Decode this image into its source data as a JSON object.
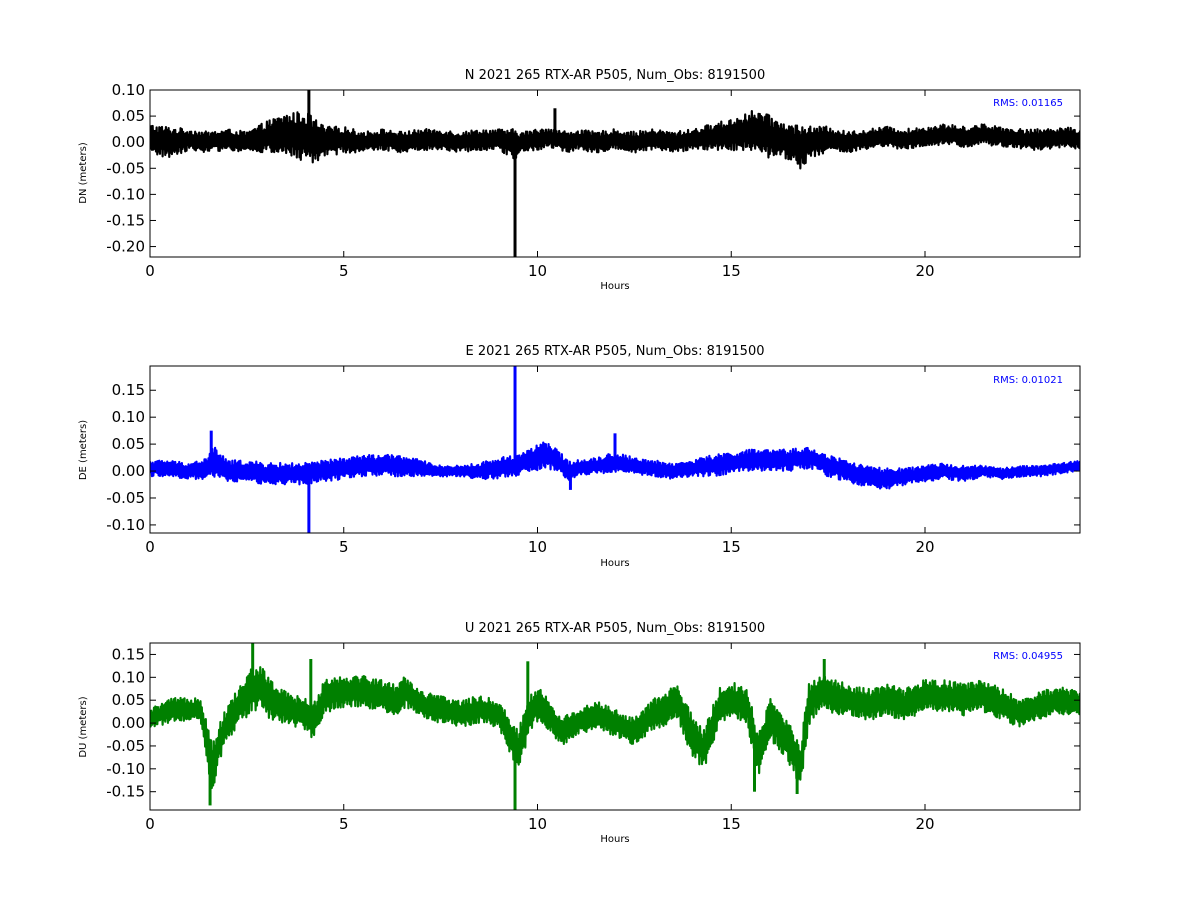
{
  "colors": {
    "background": "#ffffff",
    "axes": "#000000",
    "rms_text": "#0000ff"
  },
  "chart_data": [
    {
      "type": "line",
      "title": "N 2021 265 RTX-AR  P505, Num_Obs: 8191500",
      "xlabel": "Hours",
      "ylabel": "DN (meters)",
      "rms_text": "RMS:  0.01165",
      "xlim": [
        0,
        24
      ],
      "ylim": [
        -0.22,
        0.1
      ],
      "xticks": [
        0,
        5,
        10,
        15,
        20
      ],
      "xtick_labels": [
        "0",
        "5",
        "10",
        "15",
        "20"
      ],
      "yticks": [
        0.1,
        0.05,
        0.0,
        -0.05,
        -0.1,
        -0.15,
        -0.2
      ],
      "ytick_labels": [
        "0.10",
        "0.05",
        "0.00",
        "-0.05",
        "-0.10",
        "-0.15",
        "-0.20"
      ],
      "series": [
        {
          "color": "#000000",
          "x": [
            0,
            0.5,
            1,
            1.5,
            2,
            2.5,
            3,
            3.5,
            4,
            4.1,
            4.5,
            5,
            5.5,
            6,
            6.5,
            7,
            7.5,
            8,
            8.5,
            9,
            9.4,
            9.6,
            10,
            10.3,
            10.5,
            10.8,
            11,
            11.5,
            12,
            12.5,
            13,
            13.5,
            14,
            14.5,
            15,
            15.5,
            15.8,
            16,
            16.5,
            16.8,
            17,
            17.5,
            18,
            18.5,
            19,
            19.5,
            20,
            20.5,
            21,
            21.5,
            22,
            22.5,
            23,
            23.5,
            24
          ],
          "y": [
            0.005,
            0.0,
            0.005,
            0.0,
            0.005,
            0.0,
            0.01,
            0.015,
            0.01,
            0.005,
            0.0,
            0.005,
            0.0,
            0.005,
            0.0,
            0.005,
            0.005,
            0.0,
            0.005,
            0.005,
            -0.005,
            0.0,
            0.005,
            0.01,
            0.005,
            0.0,
            0.005,
            0.0,
            0.005,
            0.0,
            0.005,
            0.0,
            0.005,
            0.01,
            0.015,
            0.02,
            0.015,
            0.01,
            0.0,
            -0.01,
            0.0,
            0.005,
            0.0,
            0.005,
            0.01,
            0.005,
            0.01,
            0.015,
            0.01,
            0.015,
            0.01,
            0.005,
            0.005,
            0.01,
            0.005
          ],
          "envelope": [
            0.03,
            0.03,
            0.02,
            0.02,
            0.02,
            0.02,
            0.03,
            0.04,
            0.05,
            0.05,
            0.03,
            0.025,
            0.02,
            0.02,
            0.02,
            0.02,
            0.02,
            0.02,
            0.02,
            0.02,
            0.03,
            0.02,
            0.02,
            0.02,
            0.02,
            0.02,
            0.02,
            0.02,
            0.02,
            0.02,
            0.02,
            0.02,
            0.02,
            0.025,
            0.03,
            0.04,
            0.045,
            0.04,
            0.035,
            0.045,
            0.03,
            0.025,
            0.02,
            0.02,
            0.02,
            0.02,
            0.02,
            0.02,
            0.02,
            0.02,
            0.02,
            0.02,
            0.02,
            0.02,
            0.02
          ],
          "spikes": [
            {
              "x": 4.1,
              "y": 0.1
            },
            {
              "x": 9.42,
              "y": -0.22
            },
            {
              "x": 10.45,
              "y": 0.065
            }
          ]
        }
      ]
    },
    {
      "type": "line",
      "title": "E 2021 265 RTX-AR  P505, Num_Obs: 8191500",
      "xlabel": "Hours",
      "ylabel": "DE (meters)",
      "rms_text": "RMS:  0.01021",
      "xlim": [
        0,
        24
      ],
      "ylim": [
        -0.115,
        0.195
      ],
      "xticks": [
        0,
        5,
        10,
        15,
        20
      ],
      "xtick_labels": [
        "0",
        "5",
        "10",
        "15",
        "20"
      ],
      "yticks": [
        0.15,
        0.1,
        0.05,
        0.0,
        -0.05,
        -0.1
      ],
      "ytick_labels": [
        "0.15",
        "0.10",
        "0.05",
        "0.00",
        "-0.05",
        "-0.10"
      ],
      "series": [
        {
          "color": "#0000ff",
          "x": [
            0,
            0.5,
            1,
            1.5,
            1.6,
            2,
            2.5,
            3,
            3.5,
            4,
            4.5,
            5,
            5.5,
            6,
            6.5,
            7,
            7.5,
            8,
            8.5,
            9,
            9.4,
            9.6,
            10,
            10.2,
            10.5,
            10.8,
            11,
            11.5,
            12,
            12.5,
            13,
            13.5,
            14,
            14.5,
            15,
            15.5,
            16,
            16.5,
            17,
            17.5,
            18,
            18.5,
            19,
            19.5,
            20,
            20.5,
            21,
            21.5,
            22,
            22.5,
            23,
            23.5,
            24
          ],
          "y": [
            0.005,
            0.005,
            0.0,
            0.005,
            0.02,
            0.0,
            0.0,
            -0.005,
            -0.005,
            -0.005,
            0.0,
            0.005,
            0.01,
            0.01,
            0.01,
            0.005,
            0.0,
            0.0,
            0.0,
            0.005,
            0.01,
            0.015,
            0.025,
            0.03,
            0.02,
            0.0,
            0.005,
            0.01,
            0.015,
            0.01,
            0.005,
            0.0,
            0.005,
            0.01,
            0.015,
            0.02,
            0.02,
            0.02,
            0.025,
            0.01,
            0.0,
            -0.01,
            -0.015,
            -0.01,
            -0.005,
            0.0,
            -0.005,
            0.0,
            -0.005,
            0.0,
            0.0,
            0.005,
            0.01
          ],
          "envelope": [
            0.015,
            0.015,
            0.015,
            0.02,
            0.03,
            0.02,
            0.02,
            0.02,
            0.02,
            0.02,
            0.02,
            0.02,
            0.02,
            0.02,
            0.02,
            0.015,
            0.01,
            0.01,
            0.015,
            0.02,
            0.02,
            0.02,
            0.025,
            0.025,
            0.02,
            0.02,
            0.015,
            0.015,
            0.02,
            0.015,
            0.015,
            0.015,
            0.015,
            0.02,
            0.02,
            0.02,
            0.02,
            0.02,
            0.02,
            0.02,
            0.02,
            0.02,
            0.02,
            0.015,
            0.015,
            0.015,
            0.015,
            0.01,
            0.01,
            0.01,
            0.01,
            0.01,
            0.01
          ],
          "spikes": [
            {
              "x": 1.58,
              "y": 0.075
            },
            {
              "x": 4.1,
              "y": -0.115
            },
            {
              "x": 9.42,
              "y": 0.195
            },
            {
              "x": 10.85,
              "y": -0.035
            },
            {
              "x": 12.0,
              "y": 0.07
            }
          ]
        }
      ]
    },
    {
      "type": "line",
      "title": "U 2021 265 RTX-AR  P505, Num_Obs: 8191500",
      "xlabel": "Hours",
      "ylabel": "DU (meters)",
      "rms_text": "RMS:  0.04955",
      "xlim": [
        0,
        24
      ],
      "ylim": [
        -0.19,
        0.175
      ],
      "xticks": [
        0,
        5,
        10,
        15,
        20
      ],
      "xtick_labels": [
        "0",
        "5",
        "10",
        "15",
        "20"
      ],
      "yticks": [
        0.15,
        0.1,
        0.05,
        0.0,
        -0.05,
        -0.1,
        -0.15
      ],
      "ytick_labels": [
        "0.15",
        "0.10",
        "0.05",
        "0.00",
        "-0.05",
        "-0.10",
        "-0.15"
      ],
      "series": [
        {
          "color": "#008000",
          "x": [
            0,
            0.3,
            0.6,
            1,
            1.3,
            1.5,
            1.6,
            1.8,
            2,
            2.3,
            2.6,
            2.8,
            3,
            3.3,
            3.6,
            4,
            4.2,
            4.5,
            5,
            5.5,
            6,
            6.3,
            6.6,
            7,
            7.5,
            8,
            8.5,
            9,
            9.3,
            9.5,
            9.8,
            10,
            10.3,
            10.6,
            11,
            11.5,
            12,
            12.5,
            13,
            13.3,
            13.6,
            14,
            14.3,
            14.7,
            15,
            15.4,
            15.7,
            16,
            16.3,
            16.6,
            16.8,
            17,
            17.3,
            17.6,
            18,
            18.5,
            19,
            19.5,
            20,
            20.5,
            21,
            21.5,
            22,
            22.5,
            23,
            23.5,
            24
          ],
          "y": [
            0.01,
            0.02,
            0.03,
            0.03,
            0.03,
            -0.05,
            -0.1,
            -0.04,
            0.0,
            0.04,
            0.07,
            0.08,
            0.06,
            0.04,
            0.03,
            0.02,
            0.0,
            0.06,
            0.07,
            0.07,
            0.06,
            0.05,
            0.07,
            0.04,
            0.03,
            0.02,
            0.03,
            0.02,
            -0.03,
            -0.06,
            0.02,
            0.04,
            0.02,
            -0.02,
            0.0,
            0.02,
            0.0,
            -0.02,
            0.02,
            0.03,
            0.05,
            -0.03,
            -0.06,
            0.04,
            0.05,
            0.04,
            -0.07,
            0.01,
            -0.02,
            -0.06,
            -0.09,
            0.04,
            0.07,
            0.06,
            0.05,
            0.04,
            0.05,
            0.04,
            0.06,
            0.06,
            0.05,
            0.06,
            0.04,
            0.02,
            0.04,
            0.05,
            0.04
          ],
          "envelope": [
            0.02,
            0.025,
            0.025,
            0.025,
            0.03,
            0.05,
            0.06,
            0.04,
            0.04,
            0.04,
            0.05,
            0.05,
            0.05,
            0.04,
            0.035,
            0.035,
            0.04,
            0.04,
            0.035,
            0.035,
            0.035,
            0.035,
            0.035,
            0.03,
            0.03,
            0.03,
            0.03,
            0.03,
            0.04,
            0.05,
            0.04,
            0.04,
            0.035,
            0.03,
            0.03,
            0.03,
            0.03,
            0.03,
            0.035,
            0.035,
            0.04,
            0.045,
            0.045,
            0.04,
            0.04,
            0.04,
            0.05,
            0.045,
            0.045,
            0.05,
            0.05,
            0.045,
            0.04,
            0.04,
            0.035,
            0.035,
            0.035,
            0.035,
            0.035,
            0.035,
            0.035,
            0.035,
            0.035,
            0.03,
            0.03,
            0.03,
            0.03
          ],
          "spikes": [
            {
              "x": 1.55,
              "y": -0.18
            },
            {
              "x": 2.65,
              "y": 0.175
            },
            {
              "x": 4.15,
              "y": 0.14
            },
            {
              "x": 9.42,
              "y": -0.19
            },
            {
              "x": 9.75,
              "y": 0.135
            },
            {
              "x": 15.6,
              "y": -0.15
            },
            {
              "x": 16.7,
              "y": -0.155
            },
            {
              "x": 17.4,
              "y": 0.14
            }
          ]
        }
      ]
    }
  ]
}
